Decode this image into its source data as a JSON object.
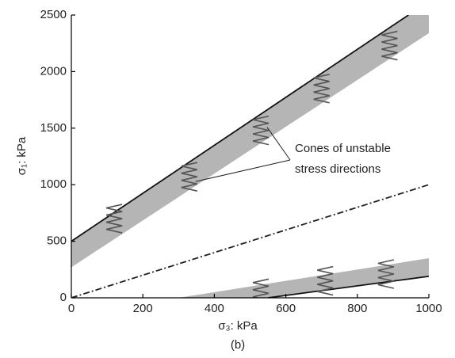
{
  "chart_data": {
    "type": "line",
    "xlabel": "σ₃: kPa",
    "ylabel": "σ₁: kPa",
    "caption": "(b)",
    "annotation": [
      "Cones of unstable",
      "stress directions"
    ],
    "xlim": [
      0,
      1000
    ],
    "ylim": [
      0,
      2500
    ],
    "xticks": [
      0,
      200,
      400,
      600,
      800,
      1000
    ],
    "yticks": [
      0,
      500,
      1000,
      1500,
      2000,
      2500
    ],
    "bands": [
      {
        "color": "#b5b5b5",
        "x": [
          0,
          1000
        ],
        "lower": [
          270,
          2340
        ],
        "upper": [
          500,
          2620
        ]
      },
      {
        "color": "#b5b5b5",
        "x": [
          300,
          550,
          1000
        ],
        "lower": [
          0,
          0,
          190
        ],
        "upper": [
          0,
          125,
          350
        ]
      }
    ],
    "series": [
      {
        "color": "#111111",
        "dash": "solid",
        "x": [
          0,
          943
        ],
        "values": [
          500,
          2500
        ]
      },
      {
        "color": "#222222",
        "dash": "dashdot",
        "x": [
          0,
          1000
        ],
        "values": [
          0,
          1000
        ]
      },
      {
        "color": "#111111",
        "dash": "solid",
        "x": [
          550,
          1000
        ],
        "values": [
          0,
          190
        ]
      }
    ],
    "cones": {
      "color": "#555555",
      "x": [
        120,
        330,
        530,
        700,
        890,
        530,
        710,
        880
      ],
      "y": [
        700,
        1070,
        1480,
        1850,
        2230,
        40,
        150,
        210
      ]
    }
  }
}
